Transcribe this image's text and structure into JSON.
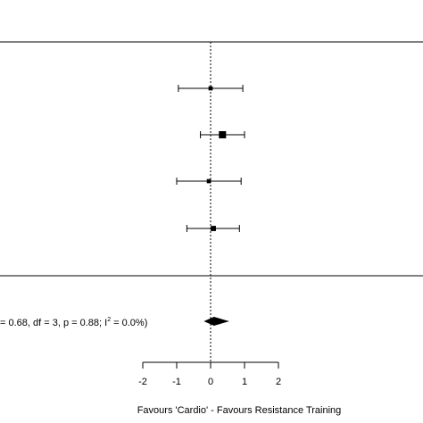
{
  "chart_data": {
    "type": "forest",
    "xlabel": "Favours 'Cardio' - Favours Resistance Training",
    "xlim": [
      -2,
      2
    ],
    "ticks": [
      -2,
      -1,
      0,
      1,
      2
    ],
    "reference_line": 0,
    "studies": [
      {
        "estimate": 0.0,
        "lower": -0.95,
        "upper": 0.95,
        "weight": 1
      },
      {
        "estimate": 0.35,
        "lower": -0.3,
        "upper": 1.0,
        "weight": 5
      },
      {
        "estimate": -0.05,
        "lower": -1.0,
        "upper": 0.9,
        "weight": 1
      },
      {
        "estimate": 0.08,
        "lower": -0.7,
        "upper": 0.85,
        "weight": 2
      }
    ],
    "pooled": {
      "estimate": 0.1,
      "lower": -0.2,
      "upper": 0.55
    },
    "heterogeneity": {
      "prefix": "= 0.68, df = 3, p = 0.88; I",
      "sup": "2",
      "suffix": " = 0.0%)"
    },
    "colors": {
      "ink": "#000000",
      "background": "#ffffff"
    }
  }
}
